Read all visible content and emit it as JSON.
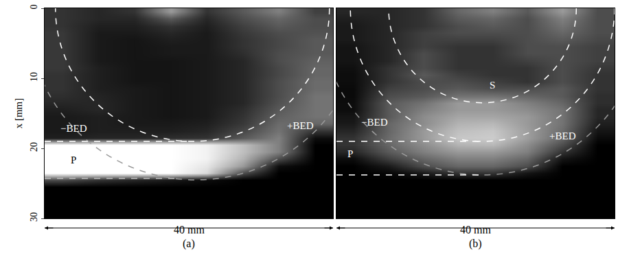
{
  "chart_data": [
    {
      "type": "heatmap",
      "panel": "(a)",
      "y_label": "x [mm]",
      "x_label": "40 mm",
      "xlim": [
        0,
        40
      ],
      "ylim": [
        30,
        0
      ],
      "yticks": [
        0,
        10,
        20,
        30
      ],
      "tick_labels": "y",
      "zlim": [
        0,
        1
      ],
      "x": [
        2.5,
        7.5,
        12.5,
        17.5,
        22.5,
        27.5,
        32.5,
        37.5
      ],
      "y": [
        0.5,
        1.5,
        2.5,
        3.5,
        4.5,
        5.5,
        6.5,
        7.5,
        8.5,
        9.5,
        10.5,
        11.5,
        12.5,
        13.5,
        14.5,
        15.5,
        16.5,
        17.5,
        18.5,
        19.5,
        20.5,
        21.5,
        22.5,
        23.5,
        24.5,
        25.5,
        26.5,
        27.5,
        28.5,
        29.5
      ],
      "z": [
        [
          0.2,
          0.15,
          0.2,
          0.6,
          0.2,
          0.35,
          0.5,
          0.25
        ],
        [
          0.2,
          0.15,
          0.15,
          0.35,
          0.15,
          0.3,
          0.4,
          0.3
        ],
        [
          0.2,
          0.12,
          0.12,
          0.2,
          0.12,
          0.25,
          0.35,
          0.3
        ],
        [
          0.22,
          0.1,
          0.1,
          0.15,
          0.1,
          0.22,
          0.3,
          0.32
        ],
        [
          0.22,
          0.1,
          0.08,
          0.12,
          0.1,
          0.2,
          0.28,
          0.35
        ],
        [
          0.22,
          0.1,
          0.08,
          0.1,
          0.1,
          0.2,
          0.28,
          0.35
        ],
        [
          0.22,
          0.1,
          0.08,
          0.1,
          0.1,
          0.18,
          0.3,
          0.35
        ],
        [
          0.22,
          0.1,
          0.08,
          0.08,
          0.1,
          0.15,
          0.3,
          0.38
        ],
        [
          0.22,
          0.12,
          0.08,
          0.08,
          0.1,
          0.15,
          0.28,
          0.4
        ],
        [
          0.2,
          0.12,
          0.08,
          0.08,
          0.1,
          0.15,
          0.28,
          0.4
        ],
        [
          0.2,
          0.12,
          0.08,
          0.08,
          0.1,
          0.15,
          0.3,
          0.42
        ],
        [
          0.2,
          0.12,
          0.1,
          0.08,
          0.1,
          0.15,
          0.3,
          0.42
        ],
        [
          0.18,
          0.14,
          0.1,
          0.08,
          0.1,
          0.15,
          0.3,
          0.45
        ],
        [
          0.15,
          0.15,
          0.1,
          0.08,
          0.1,
          0.15,
          0.32,
          0.45
        ],
        [
          0.12,
          0.15,
          0.1,
          0.08,
          0.1,
          0.18,
          0.35,
          0.45
        ],
        [
          0.1,
          0.12,
          0.1,
          0.08,
          0.1,
          0.2,
          0.38,
          0.45
        ],
        [
          0.1,
          0.12,
          0.1,
          0.1,
          0.12,
          0.22,
          0.42,
          0.4
        ],
        [
          0.1,
          0.12,
          0.12,
          0.12,
          0.15,
          0.28,
          0.45,
          0.2
        ],
        [
          0.12,
          0.15,
          0.15,
          0.18,
          0.2,
          0.35,
          0.5,
          0.05
        ],
        [
          1,
          1,
          1,
          1,
          0.95,
          0.75,
          0.5,
          0
        ],
        [
          1,
          1,
          1,
          1,
          0.95,
          0.75,
          0.5,
          0
        ],
        [
          1,
          1,
          1,
          1,
          0.95,
          0.7,
          0.3,
          0
        ],
        [
          1,
          1,
          1,
          1,
          0.9,
          0.6,
          0.05,
          0
        ],
        [
          1,
          1,
          1,
          1,
          0.85,
          0.3,
          0,
          0
        ],
        [
          0.3,
          0.2,
          0.15,
          0.1,
          0.05,
          0,
          0,
          0
        ],
        [
          0,
          0,
          0,
          0,
          0,
          0,
          0,
          0
        ],
        [
          0,
          0,
          0,
          0,
          0,
          0,
          0,
          0
        ],
        [
          0,
          0,
          0,
          0,
          0,
          0,
          0,
          0
        ],
        [
          0,
          0,
          0,
          0,
          0,
          0,
          0,
          0
        ],
        [
          0,
          0,
          0,
          0,
          0,
          0,
          0,
          0
        ]
      ],
      "arcs": [
        {
          "center": [
            20.5,
            0
          ],
          "radius": 19,
          "color": "#ffffff",
          "line_style": "dashed"
        },
        {
          "center": [
            21,
            1.4
          ],
          "radius": 23.1,
          "color": "#9a9a9a",
          "line_style": "dashed"
        }
      ],
      "lines": [
        {
          "x": [
            0,
            20.5
          ],
          "y": [
            19,
            19
          ],
          "color": "#ffffff",
          "line_style": "dashed"
        },
        {
          "x": [
            0,
            18
          ],
          "y": [
            24.3,
            24.3
          ],
          "color": "#bbbbbb",
          "line_style": "dashed"
        }
      ],
      "annotations": [
        {
          "text": "P",
          "x": 4,
          "y": 21.7,
          "color": "#000000"
        },
        {
          "text": "−BED",
          "x": 4,
          "y": 17.2,
          "color": "#ffffff"
        },
        {
          "text": "+BED",
          "x": 35.5,
          "y": 16.8,
          "color": "#ffffff"
        }
      ]
    },
    {
      "type": "heatmap",
      "panel": "(b)",
      "x_label": "40 mm",
      "xlim": [
        0,
        40
      ],
      "ylim": [
        30,
        0
      ],
      "tick_labels": false,
      "zlim": [
        0,
        1
      ],
      "x": [
        2.5,
        7.5,
        12.5,
        17.5,
        22.5,
        27.5,
        32.5,
        37.5
      ],
      "y": [
        0.5,
        1.5,
        2.5,
        3.5,
        4.5,
        5.5,
        6.5,
        7.5,
        8.5,
        9.5,
        10.5,
        11.5,
        12.5,
        13.5,
        14.5,
        15.5,
        16.5,
        17.5,
        18.5,
        19.5,
        20.5,
        21.5,
        22.5,
        23.5,
        24.5,
        25.5,
        26.5,
        27.5,
        28.5,
        29.5
      ],
      "z": [
        [
          0.15,
          0.15,
          0.2,
          0.4,
          0.5,
          0.35,
          0.6,
          0.3
        ],
        [
          0.12,
          0.15,
          0.2,
          0.35,
          0.4,
          0.3,
          0.5,
          0.3
        ],
        [
          0.1,
          0.15,
          0.2,
          0.3,
          0.35,
          0.3,
          0.45,
          0.3
        ],
        [
          0.1,
          0.15,
          0.25,
          0.3,
          0.3,
          0.3,
          0.4,
          0.3
        ],
        [
          0.1,
          0.15,
          0.25,
          0.25,
          0.25,
          0.3,
          0.35,
          0.28
        ],
        [
          0.08,
          0.15,
          0.25,
          0.2,
          0.2,
          0.3,
          0.3,
          0.25
        ],
        [
          0.08,
          0.15,
          0.3,
          0.2,
          0.2,
          0.3,
          0.3,
          0.25
        ],
        [
          0.08,
          0.15,
          0.3,
          0.2,
          0.2,
          0.25,
          0.3,
          0.25
        ],
        [
          0.06,
          0.2,
          0.3,
          0.2,
          0.2,
          0.2,
          0.3,
          0.22
        ],
        [
          0.05,
          0.2,
          0.35,
          0.25,
          0.2,
          0.2,
          0.3,
          0.2
        ],
        [
          0.05,
          0.2,
          0.3,
          0.3,
          0.25,
          0.2,
          0.3,
          0.2
        ],
        [
          0.04,
          0.25,
          0.3,
          0.35,
          0.3,
          0.3,
          0.35,
          0.2
        ],
        [
          0.04,
          0.3,
          0.35,
          0.45,
          0.45,
          0.4,
          0.35,
          0.18
        ],
        [
          0.05,
          0.35,
          0.45,
          0.6,
          0.6,
          0.5,
          0.4,
          0.18
        ],
        [
          0.05,
          0.35,
          0.5,
          0.6,
          0.6,
          0.55,
          0.45,
          0.15
        ],
        [
          0.08,
          0.35,
          0.55,
          0.65,
          0.65,
          0.6,
          0.45,
          0.15
        ],
        [
          0.1,
          0.4,
          0.55,
          0.7,
          0.72,
          0.6,
          0.45,
          0.12
        ],
        [
          0.15,
          0.4,
          0.6,
          0.75,
          0.78,
          0.62,
          0.42,
          0.08
        ],
        [
          0.2,
          0.42,
          0.6,
          0.78,
          0.8,
          0.62,
          0.4,
          0.04
        ],
        [
          0.2,
          0.4,
          0.55,
          0.7,
          0.72,
          0.55,
          0.3,
          0
        ],
        [
          0.15,
          0.35,
          0.5,
          0.6,
          0.6,
          0.5,
          0.2,
          0
        ],
        [
          0.05,
          0.25,
          0.4,
          0.5,
          0.5,
          0.4,
          0.08,
          0
        ],
        [
          0,
          0.1,
          0.3,
          0.4,
          0.4,
          0.3,
          0,
          0
        ],
        [
          0,
          0.02,
          0.1,
          0.2,
          0.2,
          0.08,
          0,
          0
        ],
        [
          0,
          0,
          0,
          0,
          0,
          0,
          0,
          0
        ],
        [
          0,
          0,
          0,
          0,
          0,
          0,
          0,
          0
        ],
        [
          0,
          0,
          0,
          0,
          0,
          0,
          0,
          0
        ],
        [
          0,
          0,
          0,
          0,
          0,
          0,
          0,
          0
        ],
        [
          0,
          0,
          0,
          0,
          0,
          0,
          0,
          0
        ],
        [
          0,
          0,
          0,
          0,
          0,
          0,
          0,
          0
        ]
      ],
      "arcs": [
        {
          "center": [
            21,
            0
          ],
          "radius": 13.5,
          "color": "#ffffff",
          "line_style": "dashed"
        },
        {
          "center": [
            21,
            0
          ],
          "radius": 19,
          "color": "#ffffff",
          "line_style": "dashed"
        },
        {
          "center": [
            21,
            0.5
          ],
          "radius": 23.3,
          "color": "#9a9a9a",
          "line_style": "dashed"
        }
      ],
      "lines": [
        {
          "x": [
            0,
            21
          ],
          "y": [
            19,
            19
          ],
          "color": "#ffffff",
          "line_style": "dashed"
        },
        {
          "x": [
            0,
            21
          ],
          "y": [
            23.8,
            23.8
          ],
          "color": "#ffffff",
          "line_style": "dashed"
        }
      ],
      "annotations": [
        {
          "text": "P",
          "x": 2,
          "y": 20.8,
          "color": "#ffffff"
        },
        {
          "text": "−BED",
          "x": 5.5,
          "y": 16.3,
          "color": "#ffffff"
        },
        {
          "text": "+BED",
          "x": 32.5,
          "y": 18.2,
          "color": "#ffffff"
        },
        {
          "text": "S",
          "x": 22.4,
          "y": 11,
          "color": "#ffffff"
        }
      ]
    }
  ]
}
